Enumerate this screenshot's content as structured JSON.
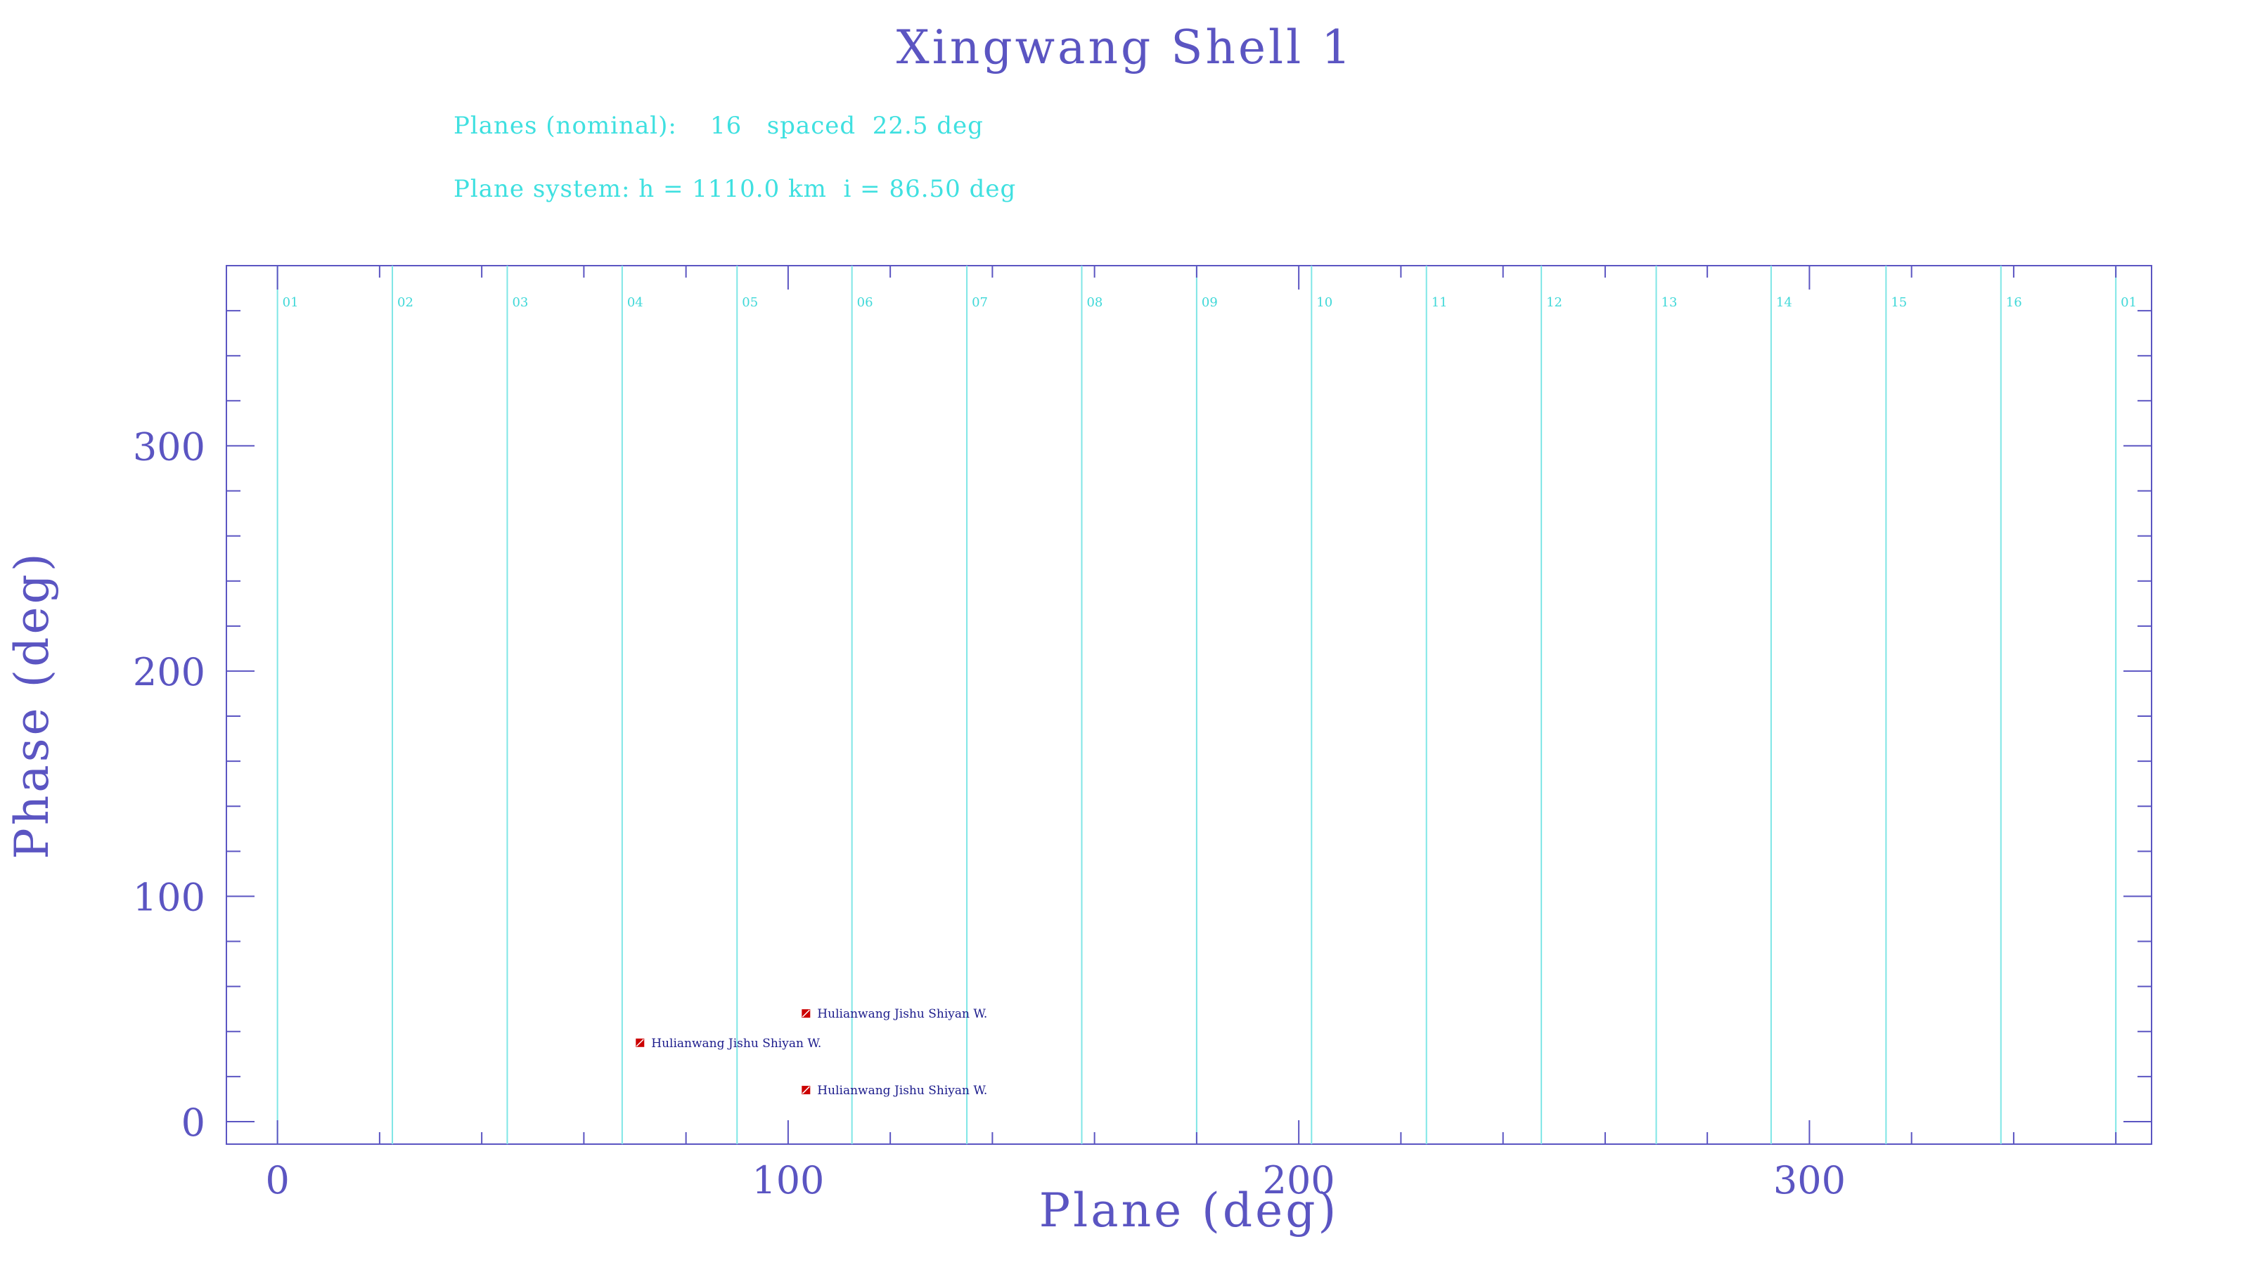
{
  "chart_data": {
    "type": "scatter",
    "title": "Xingwang Shell 1",
    "subtitle_lines": [
      "Planes (nominal):    16   spaced  22.5 deg",
      "Plane system: h = 1110.0 km  i = 86.50 deg"
    ],
    "xlabel": "Plane (deg)",
    "ylabel": "Phase (deg)",
    "xlim": [
      -10,
      367
    ],
    "ylim": [
      -10,
      380
    ],
    "x_ticks": [
      0,
      100,
      200,
      300
    ],
    "y_ticks": [
      0,
      100,
      200,
      300
    ],
    "x_minor_step": 20,
    "y_minor_step": 20,
    "planes": [
      {
        "label": "01",
        "x": 0
      },
      {
        "label": "02",
        "x": 22.5
      },
      {
        "label": "03",
        "x": 45
      },
      {
        "label": "04",
        "x": 67.5
      },
      {
        "label": "05",
        "x": 90
      },
      {
        "label": "06",
        "x": 112.5
      },
      {
        "label": "07",
        "x": 135
      },
      {
        "label": "08",
        "x": 157.5
      },
      {
        "label": "09",
        "x": 180
      },
      {
        "label": "10",
        "x": 202.5
      },
      {
        "label": "11",
        "x": 225
      },
      {
        "label": "12",
        "x": 247.5
      },
      {
        "label": "13",
        "x": 270
      },
      {
        "label": "14",
        "x": 292.5
      },
      {
        "label": "15",
        "x": 315
      },
      {
        "label": "16",
        "x": 337.5
      },
      {
        "label": "01",
        "x": 360
      }
    ],
    "points": [
      {
        "x": 103.5,
        "y": 48,
        "label": "Hulianwang Jishu Shiyan W."
      },
      {
        "x": 71,
        "y": 35,
        "label": "Hulianwang Jishu Shiyan W."
      },
      {
        "x": 103.5,
        "y": 14,
        "label": "Hulianwang Jishu Shiyan W."
      }
    ],
    "colors": {
      "axes": "#5b55c2",
      "plane_lines": "#7fe6e6",
      "subtitle": "#3fe0e0",
      "marker": "#cc0000",
      "point_label": "#1c1c8c"
    }
  }
}
